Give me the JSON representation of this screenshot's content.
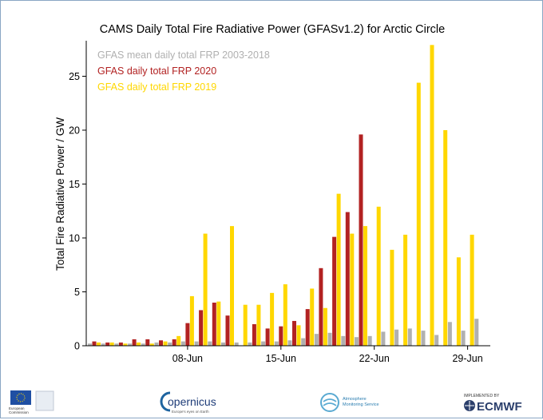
{
  "chart_data": {
    "type": "bar",
    "title": "CAMS Daily Total Fire Radiative Power (GFASv1.2) for Arctic Circle",
    "xlabel": "",
    "ylabel": "Total Fire Radiative Power / GW",
    "ylim": [
      0,
      28
    ],
    "yticks": [
      0,
      5,
      10,
      15,
      20,
      25
    ],
    "x_days": [
      1,
      2,
      3,
      4,
      5,
      6,
      7,
      8,
      9,
      10,
      11,
      12,
      13,
      14,
      15,
      16,
      17,
      18,
      19,
      20,
      21,
      22,
      23,
      24,
      25,
      26,
      27,
      28,
      29,
      30
    ],
    "x_tick_labels": [
      {
        "day": 8,
        "label": "08-Jun"
      },
      {
        "day": 15,
        "label": "15-Jun"
      },
      {
        "day": 22,
        "label": "22-Jun"
      },
      {
        "day": 29,
        "label": "29-Jun"
      }
    ],
    "legend_position": "top-left",
    "series": [
      {
        "name": "GFAS mean daily total FRP 2003-2018",
        "color": "#b0b0b0",
        "values": [
          0.2,
          0.2,
          0.2,
          0.2,
          0.2,
          0.3,
          0.3,
          0.4,
          0.4,
          0.4,
          0.3,
          0.3,
          0.3,
          0.4,
          0.4,
          0.5,
          0.7,
          1.1,
          1.2,
          0.9,
          0.8,
          0.9,
          1.3,
          1.5,
          1.6,
          1.4,
          1.0,
          2.2,
          1.4,
          2.5
        ]
      },
      {
        "name": "GFAS daily total FRP 2020",
        "color": "#b22222",
        "values": [
          0.4,
          0.3,
          0.3,
          0.6,
          0.6,
          0.5,
          0.6,
          2.1,
          3.3,
          4.0,
          2.8,
          0,
          2.0,
          1.6,
          1.8,
          2.3,
          3.4,
          7.2,
          10.1,
          12.4,
          19.6,
          0,
          0,
          0,
          0,
          0,
          0,
          0,
          0,
          0
        ]
      },
      {
        "name": "GFAS daily total FRP 2019",
        "color": "#ffd700",
        "values": [
          0.3,
          0.3,
          0.2,
          0.3,
          0.2,
          0.4,
          0.9,
          4.6,
          10.4,
          4.1,
          11.1,
          3.8,
          3.8,
          4.9,
          5.7,
          1.9,
          5.3,
          3.5,
          14.1,
          10.4,
          11.1,
          12.9,
          8.9,
          10.3,
          24.4,
          27.9,
          20.0,
          8.2,
          10.3,
          0
        ]
      }
    ]
  },
  "footer": {
    "eu_line1": "European",
    "eu_line2": "Commission",
    "copernicus_name": "opernicus",
    "copernicus_tagline": "Europe's eyes on Earth",
    "ams_line1": "Atmosphere",
    "ams_line2": "Monitoring Service",
    "ecmwf_top": "IMPLEMENTED BY",
    "ecmwf_name": "ECMWF"
  }
}
